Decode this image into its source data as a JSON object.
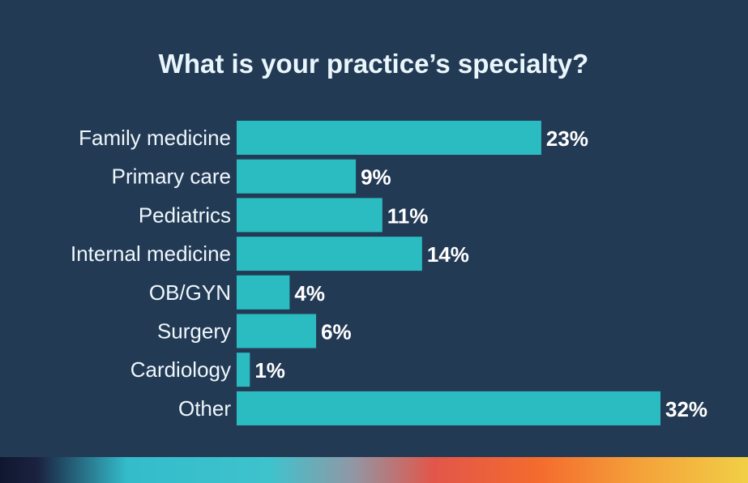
{
  "colors": {
    "background": "#233a55",
    "bar": "#2bbcc2",
    "label": "#eef7fb"
  },
  "chart_data": {
    "type": "bar",
    "orientation": "horizontal",
    "title": "What is your practice’s specialty?",
    "categories": [
      "Family medicine",
      "Primary care",
      "Pediatrics",
      "Internal medicine",
      "OB/GYN",
      "Surgery",
      "Cardiology",
      "Other"
    ],
    "values": [
      23,
      9,
      11,
      14,
      4,
      6,
      1,
      32
    ],
    "value_labels": [
      "23%",
      "9%",
      "11%",
      "14%",
      "4%",
      "6%",
      "1%",
      "32%"
    ],
    "xlim": [
      0,
      32
    ],
    "grid": false,
    "legend": "none"
  }
}
